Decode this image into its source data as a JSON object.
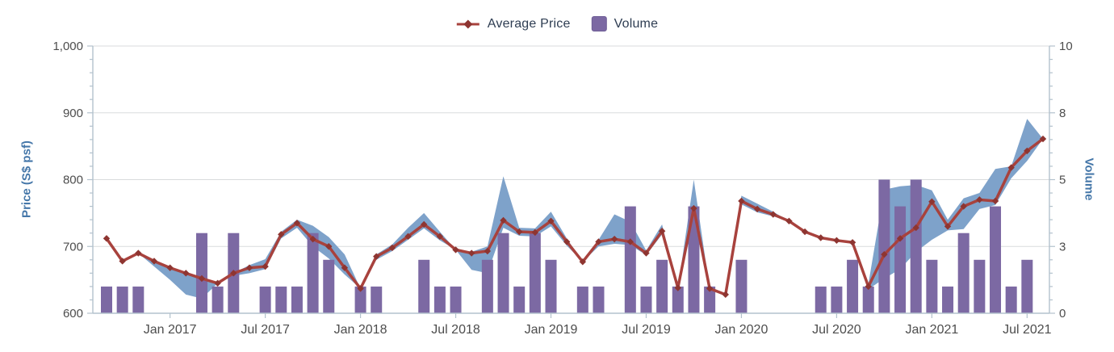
{
  "legend": {
    "items": [
      {
        "label": "Average Price",
        "type": "line-marker"
      },
      {
        "label": "Volume",
        "type": "square"
      }
    ]
  },
  "colors": {
    "price_line": "#A8423D",
    "price_marker": "#8E3531",
    "volume_bar": "#7C69A3",
    "volume_bar_border": "#6E5D96",
    "range_band": "#7EA2CA",
    "gridline": "#D9DBDD",
    "axis_line": "#B3C2CD",
    "tick_text": "#4D4D4D",
    "axis_title": "#4577A9",
    "legend_text": "#2E3D52"
  },
  "chart_data": {
    "type": "line+bar",
    "title": "",
    "xlabel": "",
    "legend_position": "top-center",
    "grid": "horizontal-major",
    "categories": [
      "Sep 2016",
      "Oct 2016",
      "Nov 2016",
      "Dec 2016",
      "Jan 2017",
      "Feb 2017",
      "Mar 2017",
      "Apr 2017",
      "May 2017",
      "Jun 2017",
      "Jul 2017",
      "Aug 2017",
      "Sep 2017",
      "Oct 2017",
      "Nov 2017",
      "Dec 2017",
      "Jan 2018",
      "Feb 2018",
      "Mar 2018",
      "Apr 2018",
      "May 2018",
      "Jun 2018",
      "Jul 2018",
      "Aug 2018",
      "Sep 2018",
      "Oct 2018",
      "Nov 2018",
      "Dec 2018",
      "Jan 2019",
      "Feb 2019",
      "Mar 2019",
      "Apr 2019",
      "May 2019",
      "Jun 2019",
      "Jul 2019",
      "Aug 2019",
      "Sep 2019",
      "Oct 2019",
      "Nov 2019",
      "Dec 2019",
      "Jan 2020",
      "Feb 2020",
      "Mar 2020",
      "Apr 2020",
      "May 2020",
      "Jun 2020",
      "Jul 2020",
      "Aug 2020",
      "Sep 2020",
      "Oct 2020",
      "Nov 2020",
      "Dec 2020",
      "Jan 2021",
      "Feb 2021",
      "Mar 2021",
      "Apr 2021",
      "May 2021",
      "Jun 2021",
      "Jul 2021",
      "Aug 2021"
    ],
    "series": [
      {
        "name": "Average Price",
        "type": "line",
        "axis": "price",
        "values": [
          712,
          678,
          690,
          678,
          668,
          660,
          652,
          645,
          660,
          668,
          670,
          718,
          735,
          711,
          700,
          668,
          637,
          685,
          698,
          715,
          733,
          715,
          695,
          690,
          693,
          739,
          722,
          721,
          738,
          707,
          677,
          707,
          711,
          707,
          690,
          723,
          638,
          757,
          637,
          628,
          768,
          756,
          748,
          738,
          722,
          713,
          709,
          706,
          640,
          688,
          712,
          728,
          767,
          730,
          760,
          770,
          768,
          818,
          843,
          861
        ]
      },
      {
        "name": "Price Range (low)",
        "type": "band-low",
        "axis": "price",
        "values": [
          null,
          null,
          null,
          670,
          650,
          628,
          622,
          null,
          656,
          660,
          666,
          712,
          728,
          700,
          682,
          658,
          null,
          680,
          693,
          710,
          727,
          709,
          null,
          665,
          660,
          728,
          716,
          715,
          730,
          701,
          null,
          700,
          704,
          702,
          687,
          718,
          null,
          750,
          null,
          null,
          763,
          751,
          745,
          null,
          null,
          null,
          null,
          null,
          636,
          652,
          666,
          692,
          710,
          724,
          726,
          756,
          762,
          802,
          828,
          null
        ]
      },
      {
        "name": "Price Range (high)",
        "type": "band-high",
        "axis": "price",
        "values": [
          null,
          null,
          null,
          null,
          null,
          null,
          null,
          null,
          null,
          672,
          681,
          722,
          740,
          731,
          714,
          688,
          null,
          688,
          703,
          728,
          750,
          722,
          null,
          692,
          700,
          805,
          728,
          727,
          752,
          712,
          null,
          710,
          748,
          737,
          694,
          733,
          null,
          800,
          null,
          null,
          776,
          764,
          752,
          null,
          null,
          null,
          null,
          null,
          644,
          785,
          790,
          792,
          784,
          740,
          772,
          780,
          816,
          820,
          891,
          null
        ]
      },
      {
        "name": "Volume",
        "type": "bar",
        "axis": "volume",
        "values": [
          1,
          1,
          1,
          0,
          0,
          0,
          3,
          1,
          3,
          0,
          1,
          1,
          1,
          3,
          2,
          0,
          1,
          1,
          0,
          0,
          2,
          1,
          1,
          0,
          2,
          3,
          1,
          3,
          2,
          0,
          1,
          1,
          0,
          4,
          1,
          2,
          1,
          4,
          1,
          0,
          2,
          0,
          0,
          0,
          0,
          1,
          1,
          2,
          1,
          5,
          4,
          5,
          2,
          1,
          3,
          2,
          4,
          1,
          2,
          0
        ]
      }
    ],
    "x_axis": {
      "tick_labels": [
        "Jan 2017",
        "Jul 2017",
        "Jan 2018",
        "Jul 2018",
        "Jan 2019",
        "Jul 2019",
        "Jan 2020",
        "Jul 2020",
        "Jan 2021",
        "Jul 2021"
      ],
      "tick_indices": [
        4,
        10,
        16,
        22,
        28,
        34,
        40,
        46,
        52,
        58
      ]
    },
    "y_axis_left": {
      "title": "Price (S$ psf)",
      "min": 600,
      "max": 1000,
      "ticks": [
        600,
        700,
        800,
        900,
        1000
      ],
      "labels": [
        "600",
        "700",
        "800",
        "900",
        "1,000"
      ],
      "minor_step": 20
    },
    "y_axis_right": {
      "title": "Volume",
      "min": 0,
      "max": 10,
      "ticks": [
        0,
        2.5,
        5,
        7.5,
        10
      ],
      "labels": [
        "0",
        "3",
        "5",
        "8",
        "10"
      ],
      "minor_step": 0.5
    }
  }
}
